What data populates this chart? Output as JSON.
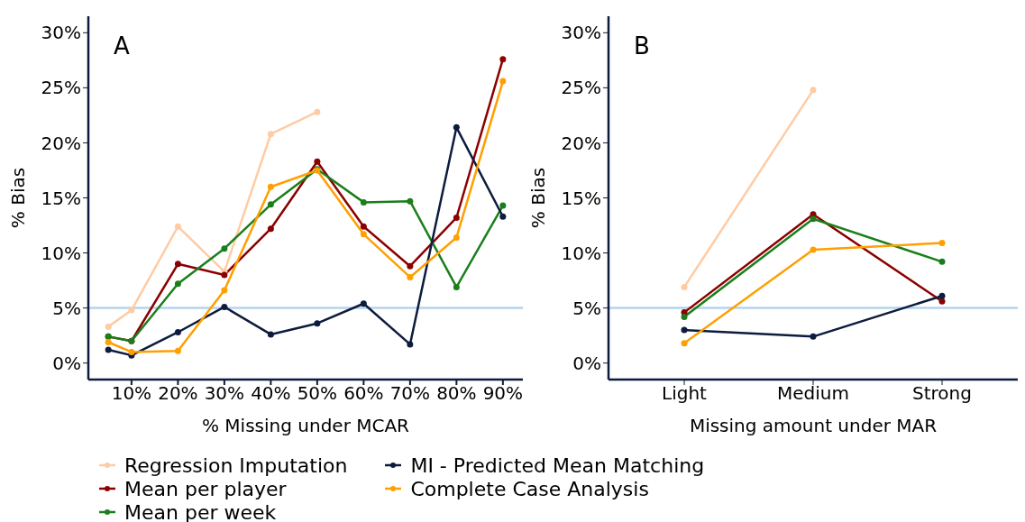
{
  "chart_data": [
    {
      "type": "line",
      "annotations": [
        "A"
      ],
      "xlabel": "% Missing under MCAR",
      "ylabel": "% Bias",
      "x": [
        5,
        10,
        20,
        30,
        40,
        50,
        60,
        70,
        80,
        90
      ],
      "xlim": [
        0.7,
        94.3
      ],
      "xticks": [
        {
          "value": 10,
          "label": "10%"
        },
        {
          "value": 20,
          "label": "20%"
        },
        {
          "value": 30,
          "label": "30%"
        },
        {
          "value": 40,
          "label": "40%"
        },
        {
          "value": 50,
          "label": "50%"
        },
        {
          "value": 60,
          "label": "60%"
        },
        {
          "value": 70,
          "label": "70%"
        },
        {
          "value": 80,
          "label": "80%"
        },
        {
          "value": 90,
          "label": "90%"
        }
      ],
      "ylim": [
        -1.5,
        31.5
      ],
      "yticks": [
        {
          "value": 0,
          "label": "0%"
        },
        {
          "value": 5,
          "label": "5%"
        },
        {
          "value": 10,
          "label": "10%"
        },
        {
          "value": 15,
          "label": "15%"
        },
        {
          "value": 20,
          "label": "20%"
        },
        {
          "value": 25,
          "label": "25%"
        },
        {
          "value": 30,
          "label": "30%"
        }
      ],
      "grid": false,
      "marker": "circle",
      "line_style": "solid",
      "legend": "bottom",
      "ref_lines": [
        {
          "axis": "y",
          "value": 5,
          "color": "#b4d4ec"
        }
      ],
      "series": [
        {
          "name": "Regression Imputation",
          "color": "#ffcba4",
          "values": [
            3.3,
            4.8,
            12.4,
            8.3,
            20.8,
            22.8,
            null,
            null,
            null,
            null
          ]
        },
        {
          "name": "Mean per player",
          "color": "#8b0000",
          "values": [
            2.4,
            2.0,
            9.0,
            8.0,
            12.2,
            18.3,
            12.4,
            8.8,
            13.2,
            27.6
          ]
        },
        {
          "name": "Mean per week",
          "color": "#1a7f1a",
          "values": [
            2.4,
            2.0,
            7.2,
            10.4,
            14.4,
            17.6,
            14.6,
            14.7,
            6.9,
            14.3
          ]
        },
        {
          "name": "MI - Predicted Mean Matching",
          "color": "#0d1b3e",
          "values": [
            1.2,
            0.7,
            2.8,
            5.1,
            2.6,
            3.6,
            5.4,
            1.7,
            21.4,
            13.3
          ]
        },
        {
          "name": "Complete Case Analysis",
          "color": "#ff9f00",
          "values": [
            1.9,
            1.0,
            1.1,
            6.6,
            16.0,
            17.5,
            11.7,
            7.8,
            11.4,
            25.6
          ]
        }
      ]
    },
    {
      "type": "line",
      "annotations": [
        "B"
      ],
      "xlabel": "Missing amount under MAR",
      "ylabel": "% Bias",
      "categories": [
        "Light",
        "Medium",
        "Strong"
      ],
      "ylim": [
        -1.5,
        31.5
      ],
      "yticks": [
        {
          "value": 0,
          "label": "0%"
        },
        {
          "value": 5,
          "label": "5%"
        },
        {
          "value": 10,
          "label": "10%"
        },
        {
          "value": 15,
          "label": "15%"
        },
        {
          "value": 20,
          "label": "20%"
        },
        {
          "value": 25,
          "label": "25%"
        },
        {
          "value": 30,
          "label": "30%"
        }
      ],
      "grid": false,
      "marker": "circle",
      "line_style": "solid",
      "ref_lines": [
        {
          "axis": "y",
          "value": 5,
          "color": "#b4d4ec"
        }
      ],
      "series": [
        {
          "color": "#ffcba4",
          "values": [
            6.9,
            24.8,
            null
          ]
        },
        {
          "color": "#8b0000",
          "values": [
            4.6,
            13.5,
            5.6
          ]
        },
        {
          "color": "#1a7f1a",
          "values": [
            4.2,
            13.1,
            9.2
          ]
        },
        {
          "color": "#0d1b3e",
          "values": [
            3.0,
            2.4,
            6.1
          ]
        },
        {
          "color": "#ff9f00",
          "values": [
            1.8,
            10.3,
            10.9
          ]
        }
      ]
    }
  ]
}
